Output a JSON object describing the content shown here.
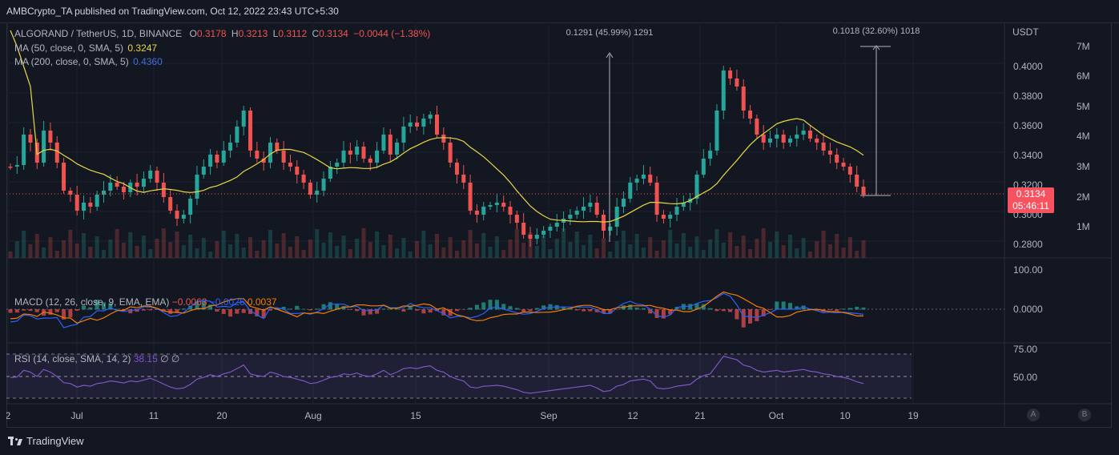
{
  "header": {
    "published": "AMBCrypto_TA published on TradingView.com, Oct 12, 2022 23:43 UTC+5:30"
  },
  "legend": {
    "symbol": "ALGORAND / TetherUS, 1D, BINANCE",
    "o_label": "O",
    "o": "0.3178",
    "h_label": "H",
    "h": "0.3213",
    "l_label": "L",
    "l": "0.3112",
    "c_label": "C",
    "c": "0.3134",
    "change": "−0.0044 (−1.38%)",
    "ma50": "MA (50, close, 0, SMA, 5)",
    "ma50_value": "0.3247",
    "ma200": "MA (200, close, 0, SMA, 5)",
    "ma200_value": "0.4360"
  },
  "macd_legend": {
    "label": "MACD (12, 26, close, 9, EMA, EMA)",
    "v1": "−0.0063",
    "v2": "−0.0026",
    "v3": "0.0037"
  },
  "rsi_legend": {
    "label": "RSI (14, close, SMA, 14, 2)",
    "v1": "38.15",
    "v2": "∅",
    "v3": "∅"
  },
  "measure_labels": {
    "left": "0.1291 (45.99%) 1291",
    "right": "0.1018 (32.60%) 1018"
  },
  "price_axis": {
    "currency": "USDT",
    "ticks": [
      "0.4000",
      "0.3800",
      "0.3600",
      "0.3400",
      "0.3200",
      "0.3000",
      "0.2800"
    ],
    "volume_ticks": [
      "7M",
      "6M",
      "5M",
      "4M",
      "3M",
      "2M",
      "1M"
    ],
    "current_price": "0.3134",
    "countdown": "05:46:11",
    "macd_ticks": [
      "100.00",
      "0.0000"
    ],
    "rsi_ticks": [
      "75.00",
      "50.00"
    ]
  },
  "time_axis": {
    "labels": [
      "2",
      "Jul",
      "11",
      "20",
      "Aug",
      "15",
      "Sep",
      "12",
      "21",
      "Oct",
      "10",
      "19"
    ]
  },
  "axis_buttons": {
    "a": "A",
    "b": "B"
  },
  "footer": {
    "brand": "TradingView"
  },
  "colors": {
    "up": "#26a69a",
    "down": "#ef5350",
    "ma50": "#e8d744",
    "ma200": "#3d6fe0",
    "background": "#131722",
    "grid": "#1e222d",
    "rsi": "#7e57c2",
    "macd_signal": "#f57c00"
  }
}
